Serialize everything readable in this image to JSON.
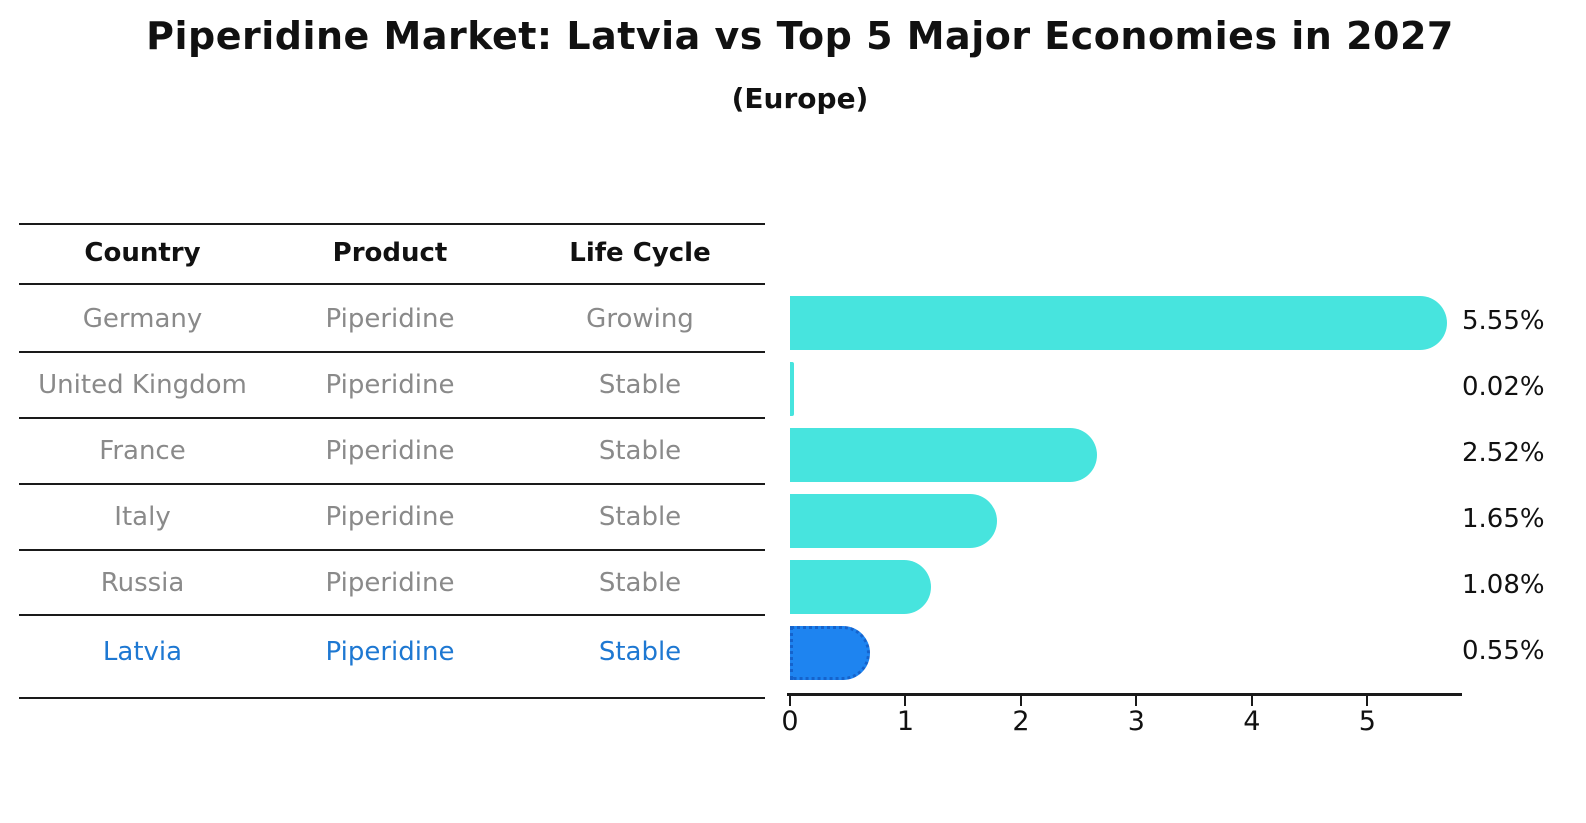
{
  "title": "Piperidine Market: Latvia vs Top 5 Major Economies in 2027",
  "subtitle": "(Europe)",
  "table": {
    "headers": {
      "country": "Country",
      "product": "Product",
      "life_cycle": "Life Cycle"
    },
    "rows": [
      {
        "country": "Germany",
        "product": "Piperidine",
        "life_cycle": "Growing",
        "highlight": false
      },
      {
        "country": "United Kingdom",
        "product": "Piperidine",
        "life_cycle": "Stable",
        "highlight": false
      },
      {
        "country": "France",
        "product": "Piperidine",
        "life_cycle": "Stable",
        "highlight": false
      },
      {
        "country": "Italy",
        "product": "Piperidine",
        "life_cycle": "Stable",
        "highlight": false
      },
      {
        "country": "Russia",
        "product": "Piperidine",
        "life_cycle": "Stable",
        "highlight": false
      },
      {
        "country": "Latvia",
        "product": "Piperidine",
        "life_cycle": "Stable",
        "highlight": true
      }
    ]
  },
  "chart_data": {
    "type": "bar",
    "orientation": "horizontal",
    "title": "Piperidine Market: Latvia vs Top 5 Major Economies in 2027",
    "subtitle": "(Europe)",
    "categories": [
      "Germany",
      "United Kingdom",
      "France",
      "Italy",
      "Russia",
      "Latvia"
    ],
    "values": [
      5.55,
      0.02,
      2.52,
      1.65,
      1.08,
      0.55
    ],
    "value_labels": [
      "5.55%",
      "0.02%",
      "2.52%",
      "1.65%",
      "1.08%",
      "0.55%"
    ],
    "x_ticks": [
      0,
      1,
      2,
      3,
      4,
      5
    ],
    "xlim": [
      0,
      5.82
    ],
    "grid": false,
    "legend": false,
    "xlabel": "",
    "ylabel": "",
    "highlight_index": 5
  },
  "colors": {
    "bar": "#47E4DE",
    "highlight_bar": "#1E84F0",
    "highlight_border": "#1563CC",
    "highlight_text": "#1E78D2",
    "table_text": "#8a8a8a",
    "line": "#1a1a1a"
  }
}
